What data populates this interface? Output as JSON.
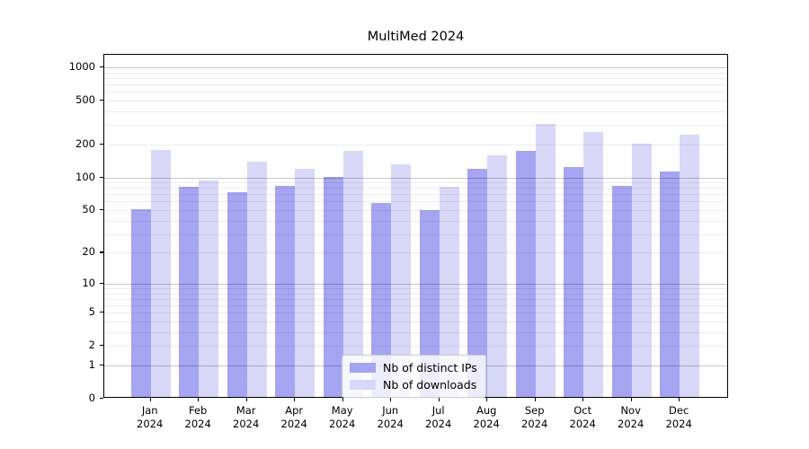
{
  "title": "MultiMed 2024",
  "legend": {
    "items": [
      {
        "label": "Nb of distinct IPs",
        "color": "#a5a5f2"
      },
      {
        "label": "Nb of downloads",
        "color": "#d8d8f8"
      }
    ]
  },
  "chart_data": {
    "type": "bar",
    "title": "MultiMed 2024",
    "categories": [
      "Jan 2024",
      "Feb 2024",
      "Mar 2024",
      "Apr 2024",
      "May 2024",
      "Jun 2024",
      "Jul 2024",
      "Aug 2024",
      "Sep 2024",
      "Oct 2024",
      "Nov 2024",
      "Dec 2024"
    ],
    "series": [
      {
        "name": "Nb of distinct IPs",
        "color": "#a5a5f2",
        "values": [
          49,
          79,
          71,
          81,
          97,
          56,
          48,
          115,
          167,
          120,
          80,
          109
        ]
      },
      {
        "name": "Nb of downloads",
        "color": "#d8d8f8",
        "values": [
          170,
          91,
          133,
          115,
          169,
          126,
          79,
          154,
          296,
          249,
          194,
          236
        ]
      }
    ],
    "xlabel": "",
    "ylabel": "",
    "yscale": "log1p",
    "ylim": [
      0,
      1300
    ],
    "ytick_labels": [
      0,
      1,
      2,
      5,
      10,
      20,
      50,
      100,
      200,
      500,
      1000
    ],
    "grid": true,
    "gridline_major_values": [
      1,
      10,
      100,
      1000
    ],
    "gridline_minor_values": [
      2,
      3,
      4,
      5,
      6,
      7,
      8,
      9,
      20,
      30,
      40,
      50,
      60,
      70,
      80,
      90,
      200,
      300,
      400,
      500,
      600,
      700,
      800,
      900
    ],
    "legend_position": "lower center"
  },
  "colors": {
    "background": "#ffffff",
    "axis": "#000000",
    "grid_major": "#c6c6c6",
    "grid_minor": "#ececec",
    "text": "#000000"
  }
}
